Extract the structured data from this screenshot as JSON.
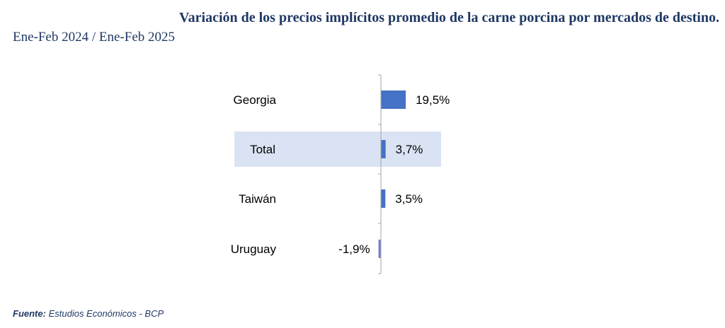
{
  "header": {
    "title": "Variación de los precios implícitos promedio de la carne porcina por mercados de destino.",
    "subtitle": "Ene-Feb 2024 / Ene-Feb 2025"
  },
  "footer": {
    "source_label": "Fuente:",
    "source_text": "Estudios Económicos - BCP"
  },
  "colors": {
    "bar": "#4472c4",
    "negative_bar": "#6f7fd0",
    "highlight": "#dae3f3",
    "axis": "#a6a6a6"
  },
  "chart_data": {
    "type": "bar",
    "orientation": "horizontal",
    "categories": [
      "Georgia",
      "Total",
      "Taiwán",
      "Uruguay"
    ],
    "values": [
      19.5,
      3.7,
      3.5,
      -1.9
    ],
    "value_labels": [
      "19,5%",
      "3,7%",
      "3,5%",
      "-1,9%"
    ],
    "highlight_category": "Total",
    "unit": "%",
    "grid": false,
    "legend": "none"
  }
}
